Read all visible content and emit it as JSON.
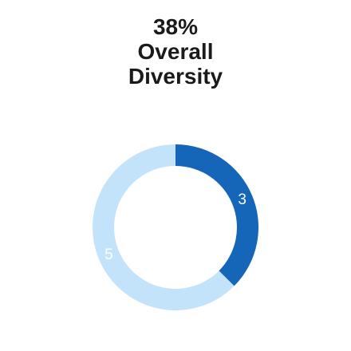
{
  "chart_data": {
    "type": "pie",
    "variant": "donut",
    "title_lines": [
      "38%",
      "Overall",
      "Diversity"
    ],
    "categories": [
      "",
      ""
    ],
    "values": [
      3,
      5
    ],
    "data_labels": [
      "3",
      "5"
    ],
    "colors": [
      "#1565b8",
      "#c3e3fb"
    ]
  }
}
